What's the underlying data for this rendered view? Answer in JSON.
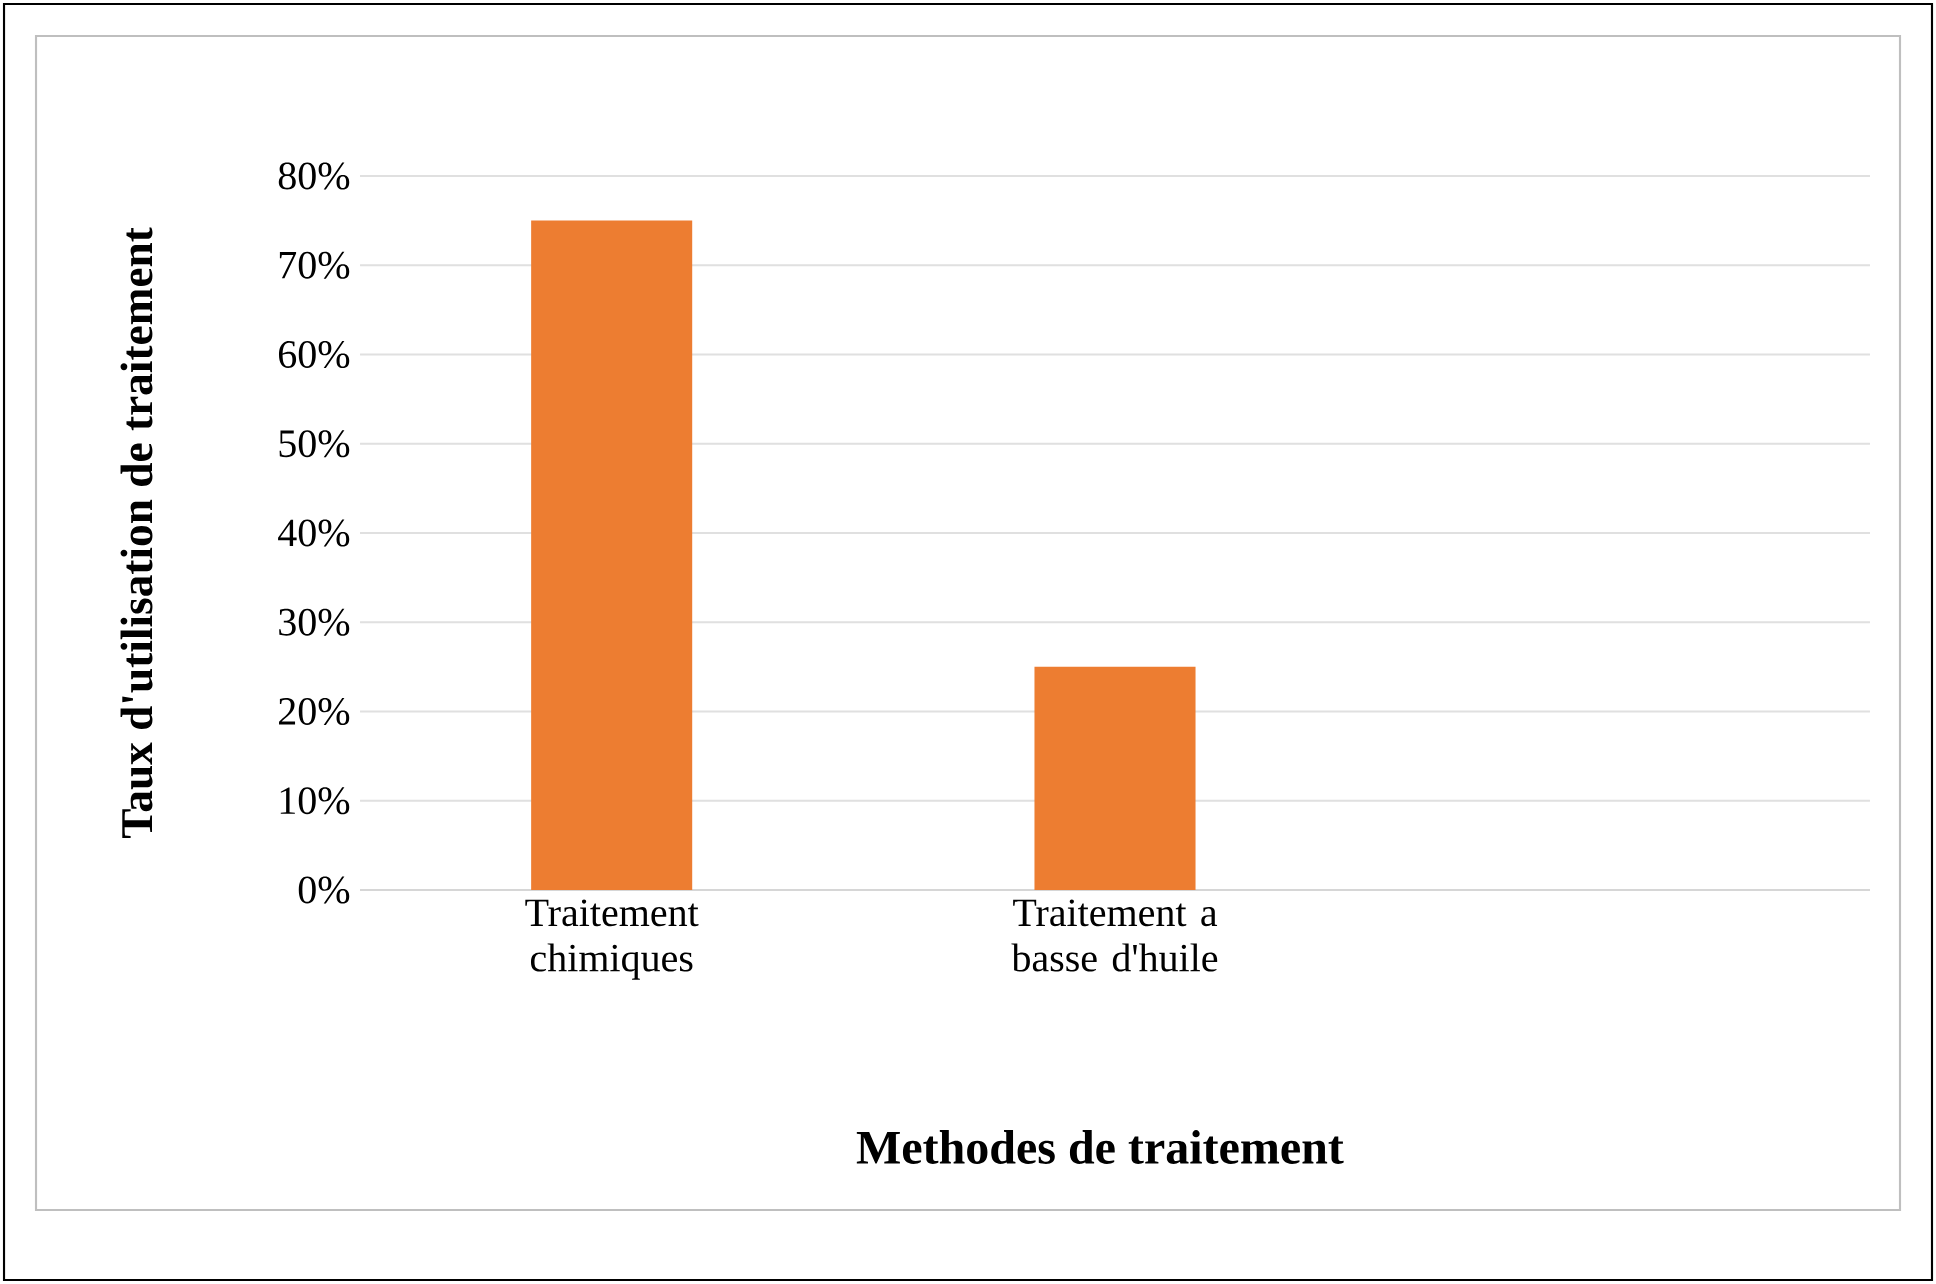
{
  "chart_data": {
    "type": "bar",
    "xlabel": "Methodes de traitement",
    "ylabel": "Taux d'utilisation  de traitement",
    "categories": [
      "Traitement chimiques",
      "Traitement a basse d'huile",
      null
    ],
    "values": [
      75,
      25,
      null
    ],
    "color": "#ed7d31",
    "ylim": [
      0,
      80
    ],
    "yticks": [
      {
        "value": 0,
        "label": "0%"
      },
      {
        "value": 10,
        "label": "10%"
      },
      {
        "value": 20,
        "label": "20%"
      },
      {
        "value": 30,
        "label": "30%"
      },
      {
        "value": 40,
        "label": "40%"
      },
      {
        "value": 50,
        "label": "50%"
      },
      {
        "value": 60,
        "label": "60%"
      },
      {
        "value": 70,
        "label": "70%"
      },
      {
        "value": 80,
        "label": "80%"
      }
    ],
    "grid": "y"
  }
}
